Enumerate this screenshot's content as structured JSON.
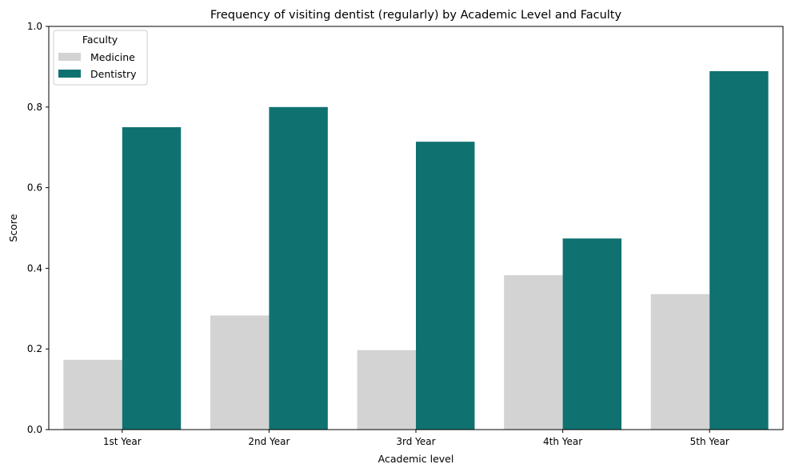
{
  "chart_data": {
    "type": "bar",
    "title": "Frequency of visiting dentist (regularly) by Academic Level and Faculty",
    "xlabel": "Academic level",
    "ylabel": "Score",
    "ylim": [
      0,
      1.0
    ],
    "yticks": [
      "0.0",
      "0.2",
      "0.4",
      "0.6",
      "0.8",
      "1.0"
    ],
    "categories": [
      "1st Year",
      "2nd Year",
      "3rd Year",
      "4th Year",
      "5th Year"
    ],
    "series": [
      {
        "name": "Medicine",
        "color": "#d3d3d3",
        "values": [
          0.173,
          0.283,
          0.197,
          0.383,
          0.336
        ]
      },
      {
        "name": "Dentistry",
        "color": "#107270",
        "values": [
          0.75,
          0.8,
          0.714,
          0.474,
          0.889
        ]
      }
    ],
    "legend": {
      "title": "Faculty",
      "position": "top-left"
    },
    "grid": false
  }
}
